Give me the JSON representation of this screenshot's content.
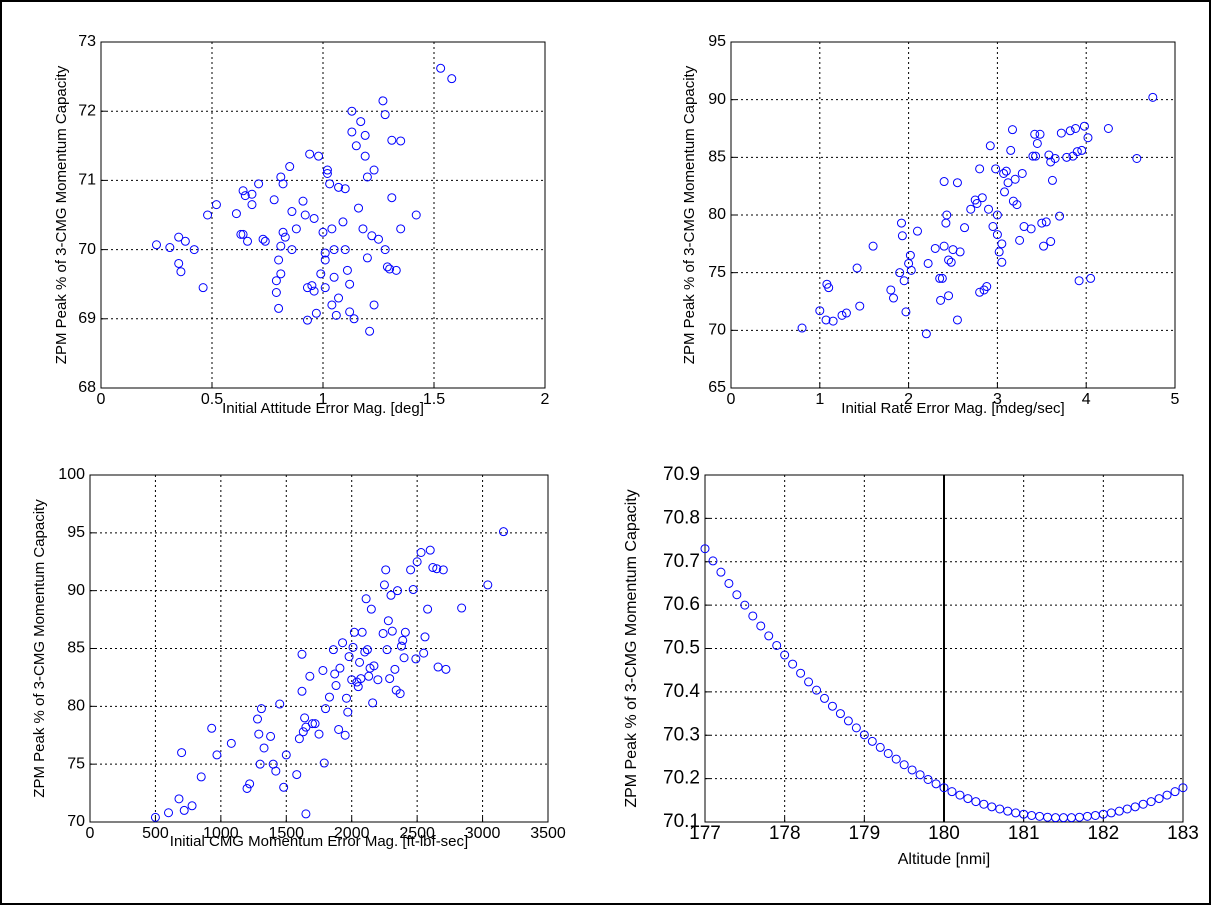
{
  "chart_data": [
    {
      "type": "scatter",
      "xlabel": "Initial Attitude Error Mag. [deg]",
      "ylabel": "ZPM Peak % of 3-CMG Momentum Capacity",
      "color": "#0000ff",
      "grid": true,
      "xlim": [
        0,
        2
      ],
      "ylim": [
        68,
        73
      ],
      "xticks": [
        0,
        0.5,
        1,
        1.5,
        2
      ],
      "yticks": [
        68,
        69,
        70,
        71,
        72,
        73
      ],
      "x": [
        0.25,
        0.31,
        0.35,
        0.35,
        0.36,
        0.38,
        0.42,
        0.46,
        0.48,
        0.52,
        0.61,
        0.63,
        0.64,
        0.65,
        0.66,
        0.64,
        0.68,
        0.68,
        0.71,
        0.73,
        0.74,
        0.78,
        0.79,
        0.79,
        0.8,
        0.8,
        0.81,
        0.81,
        0.82,
        0.81,
        0.82,
        0.83,
        0.85,
        0.86,
        0.86,
        0.88,
        0.91,
        0.92,
        0.93,
        0.93,
        0.94,
        0.95,
        0.96,
        0.96,
        0.97,
        0.98,
        0.99,
        1.0,
        1.01,
        1.01,
        1.02,
        1.02,
        1.01,
        1.03,
        1.04,
        1.04,
        1.05,
        1.05,
        1.06,
        1.07,
        1.07,
        1.09,
        1.1,
        1.1,
        1.11,
        1.12,
        1.13,
        1.12,
        1.13,
        1.14,
        1.15,
        1.16,
        1.17,
        1.18,
        1.19,
        1.19,
        1.2,
        1.2,
        1.21,
        1.22,
        1.23,
        1.23,
        1.25,
        1.27,
        1.28,
        1.28,
        1.29,
        1.3,
        1.31,
        1.31,
        1.33,
        1.35,
        1.35,
        1.42,
        1.53,
        1.58
      ],
      "values": [
        70.07,
        70.03,
        70.18,
        69.8,
        69.68,
        70.12,
        70.0,
        69.45,
        70.5,
        70.65,
        70.52,
        70.22,
        70.85,
        70.78,
        70.12,
        70.22,
        70.65,
        70.8,
        70.95,
        70.15,
        70.12,
        70.72,
        69.55,
        69.38,
        69.15,
        69.85,
        69.65,
        71.05,
        70.95,
        70.05,
        70.25,
        70.18,
        71.2,
        70.55,
        70.0,
        70.3,
        70.7,
        70.5,
        69.45,
        68.98,
        71.38,
        69.48,
        70.45,
        69.4,
        69.08,
        71.35,
        69.65,
        70.25,
        69.95,
        69.85,
        71.15,
        71.1,
        69.45,
        70.95,
        69.2,
        70.3,
        70.0,
        69.6,
        69.05,
        70.9,
        69.3,
        70.4,
        70.88,
        70.0,
        69.7,
        69.5,
        72.0,
        69.1,
        71.7,
        69.0,
        71.5,
        70.6,
        71.85,
        70.3,
        71.35,
        71.65,
        71.05,
        69.88,
        68.82,
        70.2,
        69.2,
        71.15,
        70.15,
        72.15,
        71.95,
        70.0,
        69.75,
        69.72,
        71.58,
        70.75,
        69.7,
        71.57,
        70.3,
        70.5,
        72.62,
        72.47
      ]
    },
    {
      "type": "scatter",
      "xlabel": "Initial Rate Error Mag. [mdeg/sec]",
      "ylabel": "ZPM Peak % of 3-CMG Momentum Capacity",
      "color": "#0000ff",
      "grid": true,
      "xlim": [
        0,
        5
      ],
      "ylim": [
        65,
        95
      ],
      "xticks": [
        0,
        1,
        2,
        3,
        4,
        5
      ],
      "yticks": [
        65,
        70,
        75,
        80,
        85,
        90,
        95
      ],
      "x": [
        0.8,
        1.0,
        1.07,
        1.08,
        1.1,
        1.15,
        1.25,
        1.3,
        1.42,
        1.45,
        1.6,
        1.8,
        1.83,
        1.9,
        1.92,
        1.93,
        1.95,
        1.97,
        2.0,
        2.02,
        2.03,
        2.1,
        2.2,
        2.22,
        2.3,
        2.35,
        2.36,
        2.38,
        2.4,
        2.4,
        2.42,
        2.43,
        2.45,
        2.45,
        2.48,
        2.5,
        2.55,
        2.55,
        2.58,
        2.63,
        2.7,
        2.75,
        2.77,
        2.8,
        2.8,
        2.83,
        2.85,
        2.88,
        2.9,
        2.92,
        2.95,
        2.98,
        3.0,
        3.0,
        3.02,
        3.05,
        3.05,
        3.07,
        3.08,
        3.1,
        3.12,
        3.15,
        3.17,
        3.18,
        3.2,
        3.22,
        3.25,
        3.28,
        3.3,
        3.38,
        3.4,
        3.42,
        3.43,
        3.45,
        3.48,
        3.5,
        3.52,
        3.55,
        3.58,
        3.6,
        3.6,
        3.62,
        3.65,
        3.7,
        3.72,
        3.78,
        3.82,
        3.85,
        3.88,
        3.9,
        3.92,
        3.95,
        3.98,
        4.02,
        4.05,
        4.25,
        4.57,
        4.75
      ],
      "values": [
        70.2,
        71.7,
        70.9,
        74,
        73.7,
        70.8,
        71.3,
        71.5,
        75.4,
        72.1,
        77.3,
        73.5,
        72.8,
        75,
        79.3,
        78.2,
        74.3,
        71.6,
        75.8,
        76.5,
        75.2,
        78.6,
        69.7,
        75.8,
        77.1,
        74.5,
        72.6,
        74.5,
        82.9,
        77.3,
        79.3,
        80.0,
        76.1,
        73.0,
        75.9,
        77.0,
        82.8,
        70.9,
        76.8,
        78.9,
        80.5,
        81.3,
        81.0,
        73.3,
        84.0,
        81.5,
        73.5,
        73.8,
        80.5,
        86.0,
        79.0,
        84.0,
        80.0,
        78.3,
        76.8,
        77.5,
        75.9,
        83.6,
        82.0,
        83.8,
        82.8,
        85.6,
        87.4,
        81.2,
        83.1,
        80.9,
        77.8,
        83.6,
        79.0,
        78.8,
        85.1,
        87.0,
        85.1,
        86.2,
        87.0,
        79.3,
        77.3,
        79.4,
        85.2,
        77.7,
        84.6,
        83.0,
        84.9,
        79.9,
        87.1,
        85.0,
        87.3,
        85.1,
        87.5,
        85.5,
        74.3,
        85.6,
        87.7,
        86.7,
        74.5,
        87.5,
        84.9,
        90.2
      ]
    },
    {
      "type": "scatter",
      "xlabel": "Initial CMG Momentum Error Mag. [ft-lbf-sec]",
      "ylabel": "ZPM Peak % of 3-CMG Momentum Capacity",
      "color": "#0000ff",
      "grid": true,
      "xlim": [
        0,
        3500
      ],
      "ylim": [
        70,
        100
      ],
      "xticks": [
        0,
        500,
        1000,
        1500,
        2000,
        2500,
        3000,
        3500
      ],
      "yticks": [
        70,
        75,
        80,
        85,
        90,
        95,
        100
      ],
      "x": [
        500,
        600,
        680,
        700,
        720,
        780,
        850,
        930,
        970,
        1080,
        1200,
        1220,
        1280,
        1290,
        1300,
        1310,
        1330,
        1380,
        1400,
        1420,
        1450,
        1480,
        1500,
        1580,
        1600,
        1620,
        1620,
        1630,
        1640,
        1650,
        1650,
        1680,
        1700,
        1720,
        1750,
        1780,
        1790,
        1800,
        1830,
        1860,
        1870,
        1880,
        1900,
        1910,
        1930,
        1950,
        1960,
        1970,
        1980,
        2000,
        2010,
        2020,
        2040,
        2050,
        2060,
        2070,
        2080,
        2100,
        2110,
        2120,
        2130,
        2140,
        2150,
        2160,
        2170,
        2200,
        2240,
        2250,
        2260,
        2270,
        2280,
        2290,
        2300,
        2310,
        2330,
        2340,
        2350,
        2370,
        2380,
        2390,
        2400,
        2410,
        2450,
        2470,
        2490,
        2500,
        2530,
        2550,
        2560,
        2580,
        2600,
        2620,
        2650,
        2660,
        2700,
        2720,
        2840,
        3040,
        3160
      ],
      "values": [
        70.4,
        70.8,
        72,
        76,
        71,
        71.4,
        73.9,
        78.1,
        75.8,
        76.8,
        72.9,
        73.3,
        78.9,
        77.6,
        75.0,
        79.8,
        76.4,
        77.4,
        75.0,
        74.4,
        80.2,
        73.0,
        75.8,
        74.1,
        77.2,
        81.3,
        84.5,
        77.8,
        79.0,
        78.2,
        70.7,
        82.6,
        78.5,
        78.5,
        77.6,
        83.1,
        75.1,
        79.8,
        80.8,
        84.9,
        82.8,
        81.8,
        78.0,
        83.3,
        85.5,
        77.5,
        80.7,
        79.5,
        84.3,
        82.3,
        85.1,
        86.4,
        82.1,
        81.7,
        83.8,
        82.4,
        86.4,
        84.7,
        89.3,
        84.9,
        82.6,
        83.3,
        88.4,
        80.3,
        83.5,
        82.3,
        86.3,
        90.5,
        91.8,
        84.9,
        87.4,
        82.4,
        89.6,
        86.5,
        83.2,
        81.4,
        90.0,
        81.1,
        85.2,
        85.7,
        84.2,
        86.4,
        91.8,
        90.1,
        84.1,
        92.5,
        93.3,
        84.6,
        86.0,
        88.4,
        93.5,
        92.0,
        91.9,
        83.4,
        91.8,
        83.2,
        88.5,
        90.5,
        95.1
      ]
    },
    {
      "type": "scatter",
      "xlabel": "Altitude [nmi]",
      "ylabel": "ZPM Peak % of 3-CMG Momentum Capacity",
      "color": "#0000ff",
      "grid": true,
      "vline": 180,
      "xlim": [
        177,
        183
      ],
      "ylim": [
        70.1,
        70.9
      ],
      "xticks": [
        177,
        178,
        179,
        180,
        181,
        182,
        183
      ],
      "yticks": [
        70.1,
        70.2,
        70.3,
        70.4,
        70.5,
        70.6,
        70.7,
        70.8,
        70.9
      ],
      "x": [
        177.0,
        177.1,
        177.2,
        177.3,
        177.4,
        177.5,
        177.6,
        177.7,
        177.8,
        177.9,
        178.0,
        178.1,
        178.2,
        178.3,
        178.4,
        178.5,
        178.6,
        178.7,
        178.8,
        178.9,
        179.0,
        179.1,
        179.2,
        179.3,
        179.4,
        179.5,
        179.6,
        179.7,
        179.8,
        179.9,
        180.0,
        180.1,
        180.2,
        180.3,
        180.4,
        180.5,
        180.6,
        180.7,
        180.8,
        180.9,
        181.0,
        181.1,
        181.2,
        181.3,
        181.4,
        181.5,
        181.6,
        181.7,
        181.8,
        181.9,
        182.0,
        182.1,
        182.2,
        182.3,
        182.4,
        182.5,
        182.6,
        182.7,
        182.8,
        182.9,
        183.0
      ],
      "values": [
        70.73,
        70.702,
        70.676,
        70.65,
        70.624,
        70.6,
        70.575,
        70.552,
        70.529,
        70.507,
        70.485,
        70.464,
        70.443,
        70.423,
        70.404,
        70.385,
        70.367,
        70.35,
        70.333,
        70.317,
        70.301,
        70.286,
        70.272,
        70.258,
        70.245,
        70.232,
        70.22,
        70.209,
        70.198,
        70.188,
        70.179,
        70.17,
        70.162,
        70.154,
        70.147,
        70.141,
        70.135,
        70.13,
        70.125,
        70.121,
        70.118,
        70.115,
        70.113,
        70.111,
        70.11,
        70.11,
        70.11,
        70.111,
        70.113,
        70.115,
        70.118,
        70.121,
        70.125,
        70.13,
        70.135,
        70.141,
        70.147,
        70.154,
        70.162,
        70.17,
        70.179
      ]
    }
  ]
}
